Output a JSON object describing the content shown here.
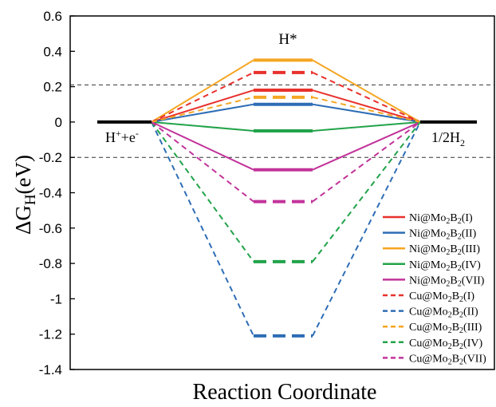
{
  "chart_data": {
    "type": "line",
    "xlabel": "Reaction Coordinate",
    "ylabel_main": "ΔG",
    "ylabel_sub": "H",
    "ylabel_unit": "(eV)",
    "ylim": [
      -1.4,
      0.6
    ],
    "yticks": [
      {
        "value": 0.6,
        "label": "0.6"
      },
      {
        "value": 0.4,
        "label": "0.4"
      },
      {
        "value": 0.2,
        "label": "0.2"
      },
      {
        "value": 0,
        "label": "0"
      },
      {
        "value": -0.2,
        "label": "-0.2"
      },
      {
        "value": -0.4,
        "label": "-0.4"
      },
      {
        "value": -0.6,
        "label": "-0.6"
      },
      {
        "value": -0.8,
        "label": "-0.8"
      },
      {
        "value": -1,
        "label": "-1"
      },
      {
        "value": -1.2,
        "label": "-1.2"
      },
      {
        "value": -1.4,
        "label": "-1.4"
      }
    ],
    "reference_lines": [
      0.21,
      -0.2
    ],
    "state_labels": {
      "initial": {
        "main": "H",
        "sup1": "+",
        "mid": "+e",
        "sup2": "-"
      },
      "intermediate": "H*",
      "final": {
        "main": "1/2H",
        "sub": "2"
      }
    },
    "initial_value": 0,
    "final_value": 0,
    "series": [
      {
        "name_pre": "Ni@Mo",
        "sub1": "2",
        "name_mid": "B",
        "sub2": "2",
        "name_post": "(I)",
        "value": 0.18,
        "color": "#e8312d",
        "dash": false
      },
      {
        "name_pre": "Ni@Mo",
        "sub1": "2",
        "name_mid": "B",
        "sub2": "2",
        "name_post": "(II)",
        "value": 0.1,
        "color": "#2e6db5",
        "dash": false
      },
      {
        "name_pre": "Ni@Mo",
        "sub1": "2",
        "name_mid": "B",
        "sub2": "2",
        "name_post": "(III)",
        "value": 0.35,
        "color": "#f5a623",
        "dash": false
      },
      {
        "name_pre": "Ni@Mo",
        "sub1": "2",
        "name_mid": "B",
        "sub2": "2",
        "name_post": "(IV)",
        "value": -0.05,
        "color": "#22a34a",
        "dash": false
      },
      {
        "name_pre": "Ni@Mo",
        "sub1": "2",
        "name_mid": "B",
        "sub2": "2",
        "name_post": "(VII)",
        "value": -0.27,
        "color": "#c2339a",
        "dash": false
      },
      {
        "name_pre": "Cu@Mo",
        "sub1": "2",
        "name_mid": "B",
        "sub2": "2",
        "name_post": "(I)",
        "value": 0.28,
        "color": "#e8312d",
        "dash": true
      },
      {
        "name_pre": "Cu@Mo",
        "sub1": "2",
        "name_mid": "B",
        "sub2": "2",
        "name_post": "(II)",
        "value": -1.21,
        "color": "#2e6db5",
        "dash": true
      },
      {
        "name_pre": "Cu@Mo",
        "sub1": "2",
        "name_mid": "B",
        "sub2": "2",
        "name_post": "(III)",
        "value": 0.14,
        "color": "#f5a623",
        "dash": true
      },
      {
        "name_pre": "Cu@Mo",
        "sub1": "2",
        "name_mid": "B",
        "sub2": "2",
        "name_post": "(IV)",
        "value": -0.79,
        "color": "#22a34a",
        "dash": true
      },
      {
        "name_pre": "Cu@Mo",
        "sub1": "2",
        "name_mid": "B",
        "sub2": "2",
        "name_post": "(VII)",
        "value": -0.45,
        "color": "#c2339a",
        "dash": true
      }
    ],
    "legend_position": "bottom-right"
  }
}
